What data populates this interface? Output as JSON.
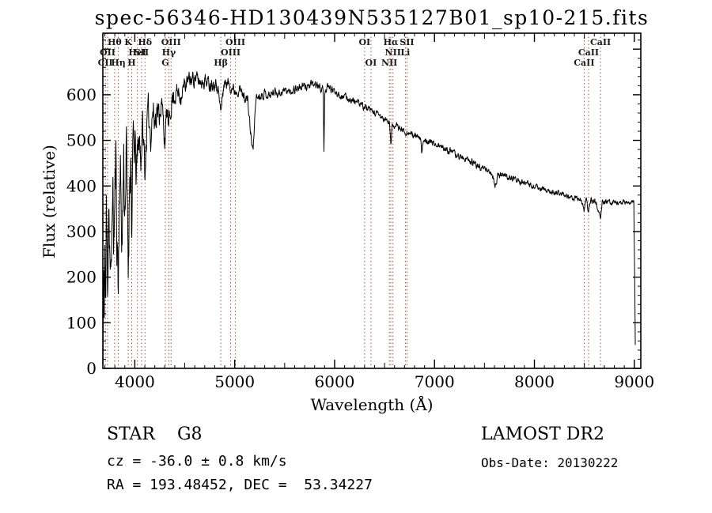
{
  "title": "spec-56346-HD130439N535127B01_sp10-215.fits",
  "line_color": "#a05050",
  "spectral_lines": [
    {
      "label": "Hθ",
      "wavelength": 3798,
      "row": 1
    },
    {
      "label": "K",
      "wavelength": 3934,
      "row": 1
    },
    {
      "label": "Hδ",
      "wavelength": 4102,
      "row": 1
    },
    {
      "label": "OIII",
      "wavelength": 4363,
      "row": 1
    },
    {
      "label": "OIII",
      "wavelength": 5007,
      "row": 1
    },
    {
      "label": "OI",
      "wavelength": 6300,
      "row": 1
    },
    {
      "label": "Hα",
      "wavelength": 6563,
      "row": 1
    },
    {
      "label": "SII",
      "wavelength": 6724,
      "row": 1
    },
    {
      "label": "CaII",
      "wavelength": 8662,
      "row": 1
    },
    {
      "label": "OII",
      "wavelength": 3727,
      "row": 2
    },
    {
      "label": "HeI",
      "wavelength": 4026,
      "row": 2
    },
    {
      "label": "SII",
      "wavelength": 4068,
      "row": 2
    },
    {
      "label": "Hγ",
      "wavelength": 4341,
      "row": 2
    },
    {
      "label": "OIII",
      "wavelength": 4959,
      "row": 2
    },
    {
      "label": "NII",
      "wavelength": 6584,
      "row": 2
    },
    {
      "label": "Li",
      "wavelength": 6708,
      "row": 2
    },
    {
      "label": "CaII",
      "wavelength": 8542,
      "row": 2
    },
    {
      "label": "CII",
      "wavelength": 3705,
      "row": 3
    },
    {
      "label": "Hη",
      "wavelength": 3835,
      "row": 3
    },
    {
      "label": "H",
      "wavelength": 3969,
      "row": 3
    },
    {
      "label": "G",
      "wavelength": 4305,
      "row": 3
    },
    {
      "label": "Hβ",
      "wavelength": 4861,
      "row": 3
    },
    {
      "label": "OI",
      "wavelength": 6364,
      "row": 3
    },
    {
      "label": "NII",
      "wavelength": 6548,
      "row": 3
    },
    {
      "label": "CaII",
      "wavelength": 8498,
      "row": 3
    }
  ],
  "chart_data": {
    "type": "line",
    "title": "spec-56346-HD130439N535127B01_sp10-215.fits",
    "xlabel": "Wavelength (Å)",
    "ylabel": "Flux (relative)",
    "xlim": [
      3680,
      9065
    ],
    "ylim": [
      0,
      735
    ],
    "x_major_ticks": [
      4000,
      5000,
      6000,
      7000,
      8000,
      9000
    ],
    "x_minor_step": 100,
    "y_major_ticks": [
      0,
      100,
      200,
      300,
      400,
      500,
      600,
      700
    ],
    "y_labeled_max": 600,
    "y_minor_step": 20,
    "grid": false,
    "legend": "none",
    "series": [
      {
        "name": "spectrum",
        "points": [
          [
            3682,
            5
          ],
          [
            3688,
            200
          ],
          [
            3694,
            60
          ],
          [
            3700,
            300
          ],
          [
            3708,
            120
          ],
          [
            3715,
            340
          ],
          [
            3727,
            180
          ],
          [
            3738,
            400
          ],
          [
            3750,
            260
          ],
          [
            3762,
            130
          ],
          [
            3775,
            420
          ],
          [
            3788,
            280
          ],
          [
            3798,
            340
          ],
          [
            3810,
            460
          ],
          [
            3822,
            300
          ],
          [
            3835,
            180
          ],
          [
            3848,
            450
          ],
          [
            3862,
            360
          ],
          [
            3875,
            280
          ],
          [
            3888,
            470
          ],
          [
            3900,
            340
          ],
          [
            3915,
            480
          ],
          [
            3934,
            220
          ],
          [
            3948,
            420
          ],
          [
            3960,
            480
          ],
          [
            3969,
            290
          ],
          [
            3985,
            510
          ],
          [
            4000,
            470
          ],
          [
            4020,
            430
          ],
          [
            4040,
            515
          ],
          [
            4060,
            465
          ],
          [
            4080,
            525
          ],
          [
            4102,
            430
          ],
          [
            4120,
            535
          ],
          [
            4140,
            555
          ],
          [
            4160,
            515
          ],
          [
            4180,
            565
          ],
          [
            4200,
            540
          ],
          [
            4220,
            575
          ],
          [
            4240,
            550
          ],
          [
            4260,
            585
          ],
          [
            4280,
            555
          ],
          [
            4305,
            495
          ],
          [
            4320,
            570
          ],
          [
            4341,
            525
          ],
          [
            4363,
            580
          ],
          [
            4385,
            595
          ],
          [
            4420,
            605
          ],
          [
            4460,
            598
          ],
          [
            4500,
            622
          ],
          [
            4550,
            632
          ],
          [
            4600,
            638
          ],
          [
            4650,
            628
          ],
          [
            4700,
            633
          ],
          [
            4750,
            624
          ],
          [
            4800,
            628
          ],
          [
            4830,
            618
          ],
          [
            4861,
            562
          ],
          [
            4890,
            622
          ],
          [
            4920,
            628
          ],
          [
            4959,
            618
          ],
          [
            5007,
            608
          ],
          [
            5050,
            612
          ],
          [
            5090,
            598
          ],
          [
            5130,
            588
          ],
          [
            5167,
            498
          ],
          [
            5185,
            478
          ],
          [
            5210,
            592
          ],
          [
            5250,
            598
          ],
          [
            5300,
            603
          ],
          [
            5350,
            598
          ],
          [
            5400,
            608
          ],
          [
            5450,
            603
          ],
          [
            5500,
            610
          ],
          [
            5550,
            606
          ],
          [
            5600,
            613
          ],
          [
            5650,
            616
          ],
          [
            5700,
            618
          ],
          [
            5750,
            620
          ],
          [
            5800,
            623
          ],
          [
            5840,
            618
          ],
          [
            5870,
            613
          ],
          [
            5885,
            616
          ],
          [
            5893,
            468
          ],
          [
            5902,
            610
          ],
          [
            5940,
            616
          ],
          [
            5980,
            610
          ],
          [
            6020,
            606
          ],
          [
            6060,
            598
          ],
          [
            6100,
            596
          ],
          [
            6150,
            590
          ],
          [
            6200,
            586
          ],
          [
            6250,
            580
          ],
          [
            6300,
            573
          ],
          [
            6350,
            566
          ],
          [
            6400,
            560
          ],
          [
            6450,
            554
          ],
          [
            6495,
            546
          ],
          [
            6520,
            543
          ],
          [
            6550,
            538
          ],
          [
            6563,
            488
          ],
          [
            6578,
            536
          ],
          [
            6620,
            530
          ],
          [
            6660,
            526
          ],
          [
            6700,
            520
          ],
          [
            6740,
            516
          ],
          [
            6800,
            510
          ],
          [
            6860,
            503
          ],
          [
            6872,
            468
          ],
          [
            6890,
            503
          ],
          [
            6940,
            498
          ],
          [
            7000,
            493
          ],
          [
            7060,
            486
          ],
          [
            7120,
            480
          ],
          [
            7180,
            473
          ],
          [
            7240,
            466
          ],
          [
            7300,
            460
          ],
          [
            7360,
            453
          ],
          [
            7420,
            446
          ],
          [
            7480,
            440
          ],
          [
            7540,
            434
          ],
          [
            7590,
            418
          ],
          [
            7605,
            398
          ],
          [
            7640,
            426
          ],
          [
            7700,
            423
          ],
          [
            7760,
            418
          ],
          [
            7820,
            413
          ],
          [
            7880,
            408
          ],
          [
            7940,
            403
          ],
          [
            8000,
            398
          ],
          [
            8060,
            394
          ],
          [
            8120,
            390
          ],
          [
            8180,
            386
          ],
          [
            8240,
            384
          ],
          [
            8300,
            380
          ],
          [
            8360,
            376
          ],
          [
            8420,
            374
          ],
          [
            8470,
            370
          ],
          [
            8498,
            348
          ],
          [
            8520,
            370
          ],
          [
            8542,
            343
          ],
          [
            8565,
            368
          ],
          [
            8600,
            366
          ],
          [
            8620,
            364
          ],
          [
            8662,
            328
          ],
          [
            8680,
            363
          ],
          [
            8740,
            366
          ],
          [
            8800,
            364
          ],
          [
            8860,
            362
          ],
          [
            8920,
            364
          ],
          [
            8980,
            366
          ],
          [
            8995,
            368
          ],
          [
            9005,
            180
          ],
          [
            9012,
            5
          ]
        ]
      }
    ],
    "noise": {
      "seed": 11,
      "control_wavelengths": [
        3680,
        3750,
        3850,
        3950,
        4050,
        4150,
        4300,
        4500,
        4800,
        5200,
        6000,
        7000,
        8000,
        9065
      ],
      "amplitudes": [
        70,
        100,
        85,
        70,
        50,
        40,
        30,
        20,
        14,
        10,
        8,
        7,
        6,
        6
      ],
      "sample_step": 3
    }
  },
  "footer": {
    "class_label": "STAR    G8",
    "survey": "LAMOST DR2",
    "cz": "cz = -36.0 ± 0.8 km/s",
    "obs_date": "Obs-Date: 20130222",
    "ra_dec": "RA = 193.48452, DEC =  53.34227"
  }
}
